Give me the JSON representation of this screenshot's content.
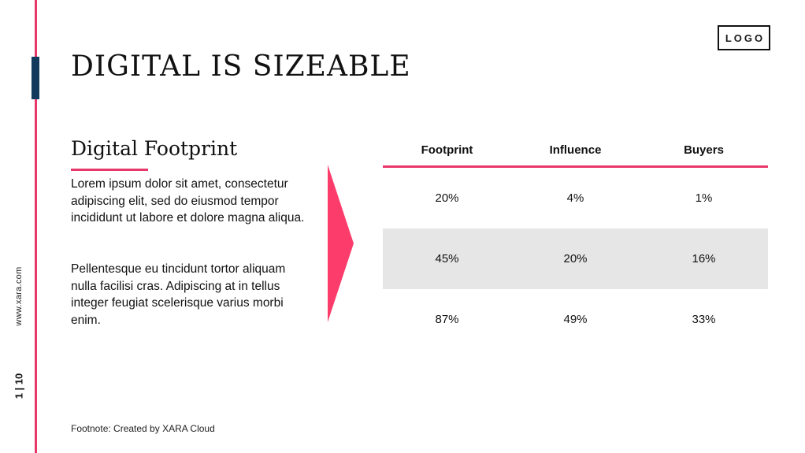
{
  "side": {
    "url": "www.xara.com",
    "page": "1 | 10"
  },
  "logo": "LOGO",
  "title": "DIGITAL IS SIZEABLE",
  "subtitle": "Digital Footprint",
  "paragraphs": [
    "Lorem ipsum dolor sit amet, consectetur adipiscing elit, sed do eiusmod tempor incididunt ut labore et dolore magna aliqua.",
    "Pellentesque eu tincidunt tortor aliquam nulla facilisi cras. Adipiscing at in tellus integer feugiat scelerisque varius morbi enim."
  ],
  "table": {
    "headers": [
      "Footprint",
      "Influence",
      "Buyers"
    ],
    "rows": [
      [
        "20%",
        "4%",
        "1%"
      ],
      [
        "45%",
        "20%",
        "16%"
      ],
      [
        "87%",
        "49%",
        "33%"
      ]
    ]
  },
  "footnote": "Footnote: Created by XARA Cloud",
  "colors": {
    "accent": "#e8386a",
    "navy": "#123a5c",
    "row_shade": "#e6e6e6"
  }
}
